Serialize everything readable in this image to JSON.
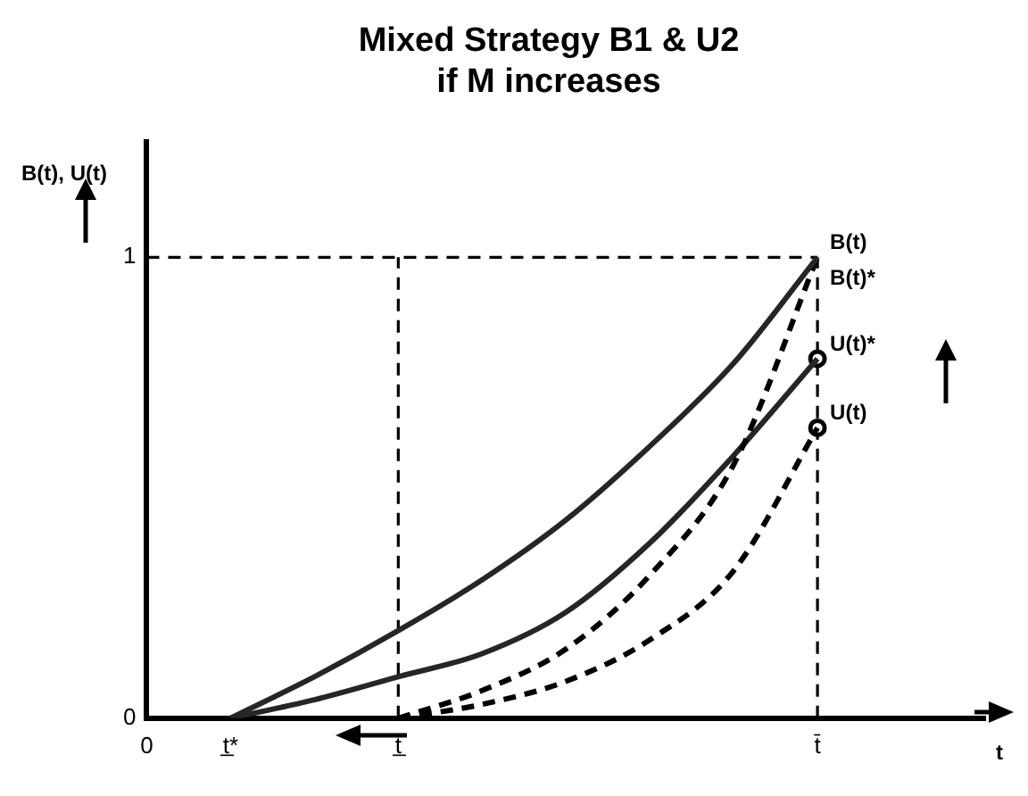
{
  "chart_data": {
    "type": "line",
    "title": "Mixed Strategy B1 & U2\nif M increases",
    "ylabel": "B(t), U(t)",
    "xlabel": "t",
    "categories": [
      "0",
      "t̲*",
      null,
      "t̲",
      null,
      null,
      null,
      null,
      "t̄",
      null,
      null
    ],
    "ylim": [
      0,
      1.25
    ],
    "yticks": [
      0,
      1
    ],
    "grid": false,
    "legend": false,
    "series": [
      {
        "name": "B(t)",
        "color": "#262626",
        "line_style": "solid",
        "marker": "none",
        "values": [
          null,
          0,
          0.09,
          0.19,
          0.3,
          0.43,
          0.59,
          0.77,
          1,
          null,
          null
        ]
      },
      {
        "name": "B(t)*",
        "color": "#000000",
        "line_style": "dashed",
        "marker": "none",
        "values": [
          null,
          null,
          null,
          0,
          0.06,
          0.15,
          0.31,
          0.55,
          1,
          null,
          null
        ]
      },
      {
        "name": "U(t)*",
        "color": "#262626",
        "line_style": "solid",
        "values": [
          null,
          0,
          0.04,
          0.09,
          0.14,
          0.23,
          0.38,
          0.57,
          0.78,
          null,
          null
        ]
      },
      {
        "name": "U(t)",
        "color": "#000000",
        "line_style": "dashed",
        "values": [
          null,
          null,
          null,
          0,
          0.03,
          0.08,
          0.17,
          0.32,
          0.63,
          null,
          null
        ]
      },
      {
        "type": "scatter",
        "color": "#000000",
        "marker": "circle",
        "values": [
          null,
          null,
          null,
          null,
          null,
          null,
          null,
          null,
          0.78,
          null,
          null
        ]
      },
      {
        "type": "scatter",
        "color": "#000000",
        "marker": "circle",
        "values": [
          null,
          null,
          null,
          null,
          null,
          null,
          null,
          null,
          0.63,
          null,
          null
        ]
      }
    ],
    "ref_lines": [
      {
        "axis": "y",
        "value": 1,
        "color": "#000000",
        "line_style": "dashed"
      },
      {
        "axis": "x",
        "value": "t̲",
        "color": "#000000",
        "line_style": "dashed"
      },
      {
        "axis": "x",
        "value": "t̄",
        "color": "#000000",
        "line_style": "dashed"
      }
    ]
  }
}
